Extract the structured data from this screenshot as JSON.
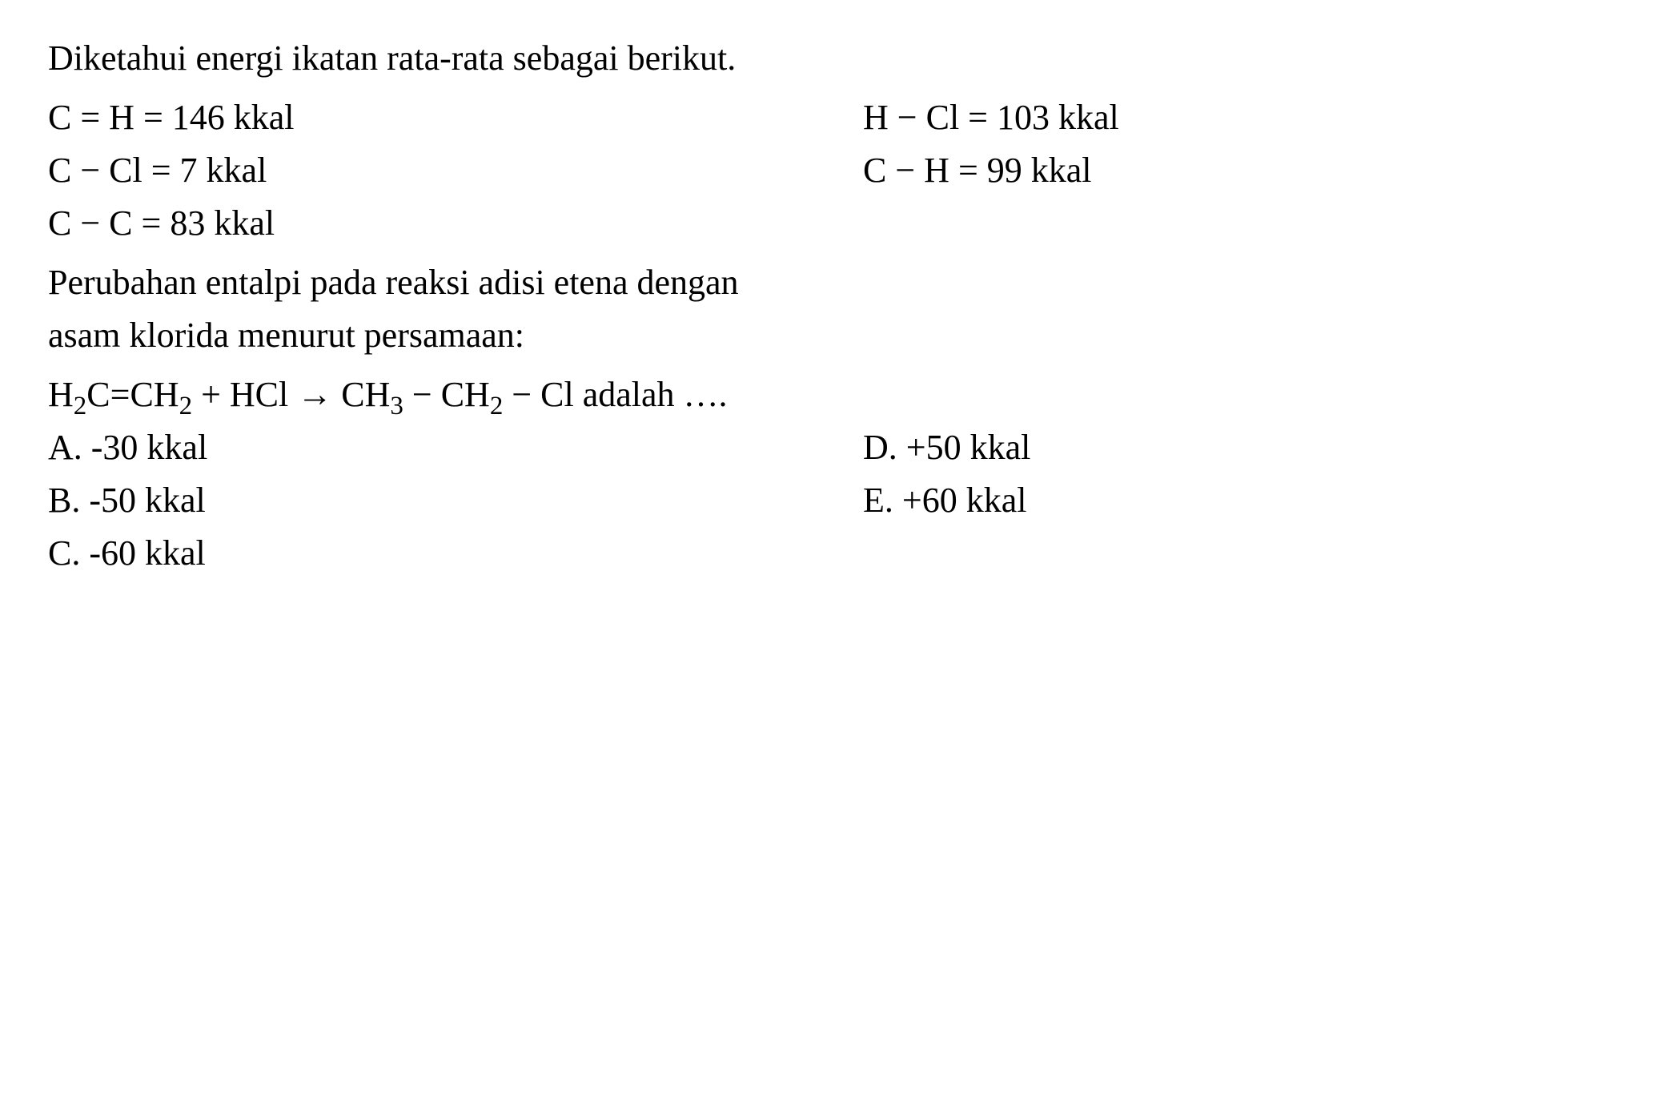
{
  "intro": "Diketahui energi ikatan rata-rata sebagai berikut.",
  "bonds": {
    "r1c1": "C = H = 146 kkal",
    "r1c2": "H − Cl = 103 kkal",
    "r2c1": "C − Cl = 7 kkal",
    "r2c2": "C − H  = 99 kkal",
    "r3c1": "C − C  = 83 kkal"
  },
  "question": {
    "line1": "Perubahan entalpi pada reaksi adisi etena dengan",
    "line2": "asam klorida menurut persamaan:"
  },
  "reaction": {
    "p1": "H",
    "p2": "2",
    "p3": "C=CH",
    "p4": "2",
    "p5": " + HCl → CH",
    "p6": "3",
    "p7": " − CH",
    "p8": "2",
    "p9": " − Cl adalah …."
  },
  "options": {
    "a": "A. -30 kkal",
    "b": "B. -50 kkal",
    "c": "C. -60 kkal",
    "d": "D. +50 kkal",
    "e": "E. +60 kkal"
  },
  "style": {
    "font_family": "Times New Roman, serif",
    "font_size_pt": 44,
    "text_color": "#000000",
    "background_color": "#ffffff",
    "line_height": 1.5
  }
}
